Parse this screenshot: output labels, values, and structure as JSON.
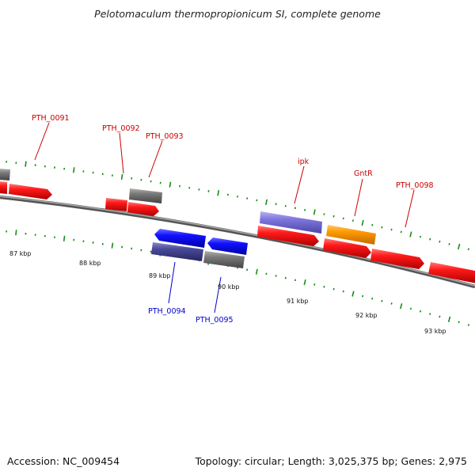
{
  "title": "Pelotomaculum thermopropionicum SI, complete genome",
  "footer": {
    "accession": "Accession: NC_009454",
    "summary": "Topology: circular; Length: 3,025,375 bp; Genes: 2,975"
  },
  "colors": {
    "tick": "#1a8a1a",
    "backbone": "#808080",
    "label_top": "#cc0000",
    "label_bottom": "#0000cc",
    "gene_red": "#ee0000",
    "gene_gray": "#6f6f6f",
    "gene_blue": "#0000ee",
    "gene_navy": "#3c3c8c",
    "gene_lavender": "#7b73d9",
    "gene_orange": "#ff9900"
  },
  "kbp_labels": [
    {
      "text": "87 kbp",
      "kbp": 87
    },
    {
      "text": "88 kbp",
      "kbp": 88
    },
    {
      "text": "89 kbp",
      "kbp": 89
    },
    {
      "text": "90 kbp",
      "kbp": 90
    },
    {
      "text": "91 kbp",
      "kbp": 91
    },
    {
      "text": "92 kbp",
      "kbp": 92
    },
    {
      "text": "93 kbp",
      "kbp": 93
    }
  ],
  "gene_labels_top": [
    "PTH_0091",
    "PTH_0092",
    "PTH_0093",
    "ipk",
    "GntR",
    "PTH_0098"
  ],
  "gene_labels_bottom": [
    "PTH_0094",
    "PTH_0095"
  ]
}
